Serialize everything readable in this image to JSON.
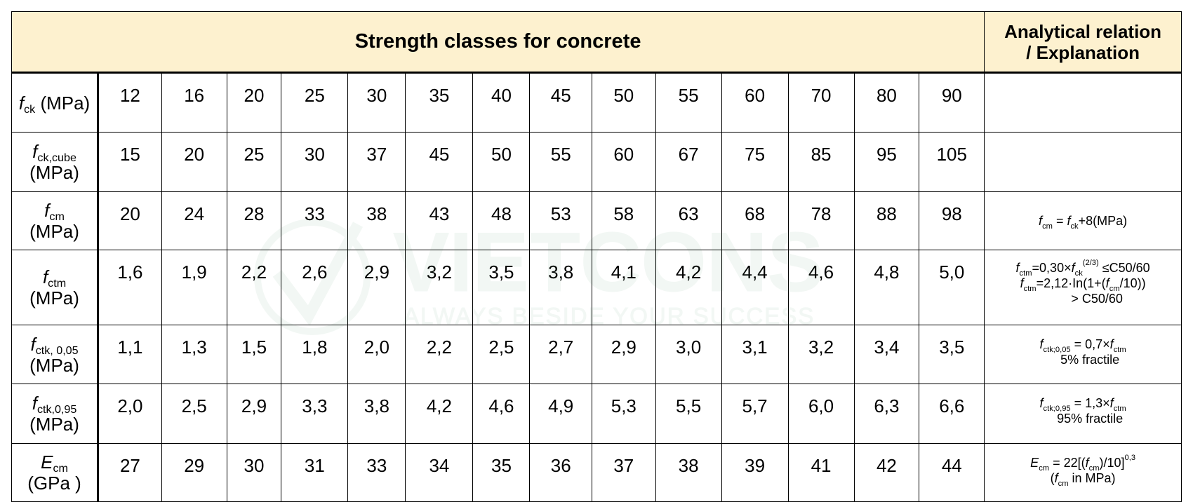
{
  "header": {
    "title": "Strength classes for concrete",
    "explanation_line1": "Analytical relation",
    "explanation_line2": "/ Explanation"
  },
  "rows": {
    "fck": {
      "sym": "f",
      "sub": "ck",
      "unit": "(MPa)",
      "values": [
        "12",
        "16",
        "20",
        "25",
        "30",
        "35",
        "40",
        "45",
        "50",
        "55",
        "60",
        "70",
        "80",
        "90"
      ]
    },
    "fckcube": {
      "sym": "f",
      "sub": "ck,cube",
      "unit": "(MPa)",
      "values": [
        "15",
        "20",
        "25",
        "30",
        "37",
        "45",
        "50",
        "55",
        "60",
        "67",
        "75",
        "85",
        "95",
        "105"
      ]
    },
    "fcm": {
      "sym": "f",
      "sub": "cm",
      "unit": "(MPa)",
      "values": [
        "20",
        "24",
        "28",
        "33",
        "38",
        "43",
        "48",
        "53",
        "58",
        "63",
        "68",
        "78",
        "88",
        "98"
      ],
      "ex": {
        "f1": "f",
        "s1": "cm",
        "eq": " = ",
        "f2": "f",
        "s2": "ck",
        "rest": "+8(MPa)"
      }
    },
    "fctm": {
      "sym": "f",
      "sub": "ctm",
      "unit": "(MPa)",
      "values": [
        "1,6",
        "1,9",
        "2,2",
        "2,6",
        "2,9",
        "3,2",
        "3,5",
        "3,8",
        "4,1",
        "4,2",
        "4,4",
        "4,6",
        "4,8",
        "5,0"
      ],
      "ex": {
        "a_f": "f",
        "a_s": "ctm",
        "a_mid": "=0,30×",
        "a_f2": "f",
        "a_s2": "ck",
        "a_sup": "(2/3)",
        "a_end": " ≤C50/60",
        "b_f": "f",
        "b_s": "ctm",
        "b_mid": "=2,12·In(1+(",
        "b_f2": "f",
        "b_s2": "cm",
        "b_end": "/10))",
        "c": "> C50/60"
      }
    },
    "fctk005": {
      "sym": "f",
      "sub": "ctk, 0,05",
      "unit": "(MPa)",
      "values": [
        "1,1",
        "1,3",
        "1,5",
        "1,8",
        "2,0",
        "2,2",
        "2,5",
        "2,7",
        "2,9",
        "3,0",
        "3,1",
        "3,2",
        "3,4",
        "3,5"
      ],
      "ex": {
        "f1": "f",
        "s1": "ctk;0,05",
        "eq": " = 0,7×",
        "f2": "f",
        "s2": "ctm",
        "note": "5% fractile"
      }
    },
    "fctk095": {
      "sym": "f",
      "sub": "ctk,0,95",
      "unit": "(MPa)",
      "values": [
        "2,0",
        "2,5",
        "2,9",
        "3,3",
        "3,8",
        "4,2",
        "4,6",
        "4,9",
        "5,3",
        "5,5",
        "5,7",
        "6,0",
        "6,3",
        "6,6"
      ],
      "ex": {
        "f1": "f",
        "s1": "ctk;0,95",
        "eq": " = 1,3×",
        "f2": "f",
        "s2": "ctm",
        "note": "95% fractile"
      }
    },
    "ecm": {
      "sym": "E",
      "sub": "cm",
      "unit": "(GPa )",
      "values": [
        "27",
        "29",
        "30",
        "31",
        "33",
        "34",
        "35",
        "36",
        "37",
        "38",
        "39",
        "41",
        "42",
        "44"
      ],
      "ex": {
        "e": "E",
        "s1": "cm",
        "eq": " = 22[(",
        "f2": "f",
        "s2": "cm",
        "rest": ")/10]",
        "sup": "0,3",
        "open": "(",
        "f3": "f",
        "s3": "cm",
        "tail": " in MPa)"
      }
    }
  },
  "watermark": {
    "brand": "VIETCONS",
    "tagline": "ALWAYS BESIDE YOUR SUCCESS",
    "color": "#1f7a3a"
  }
}
